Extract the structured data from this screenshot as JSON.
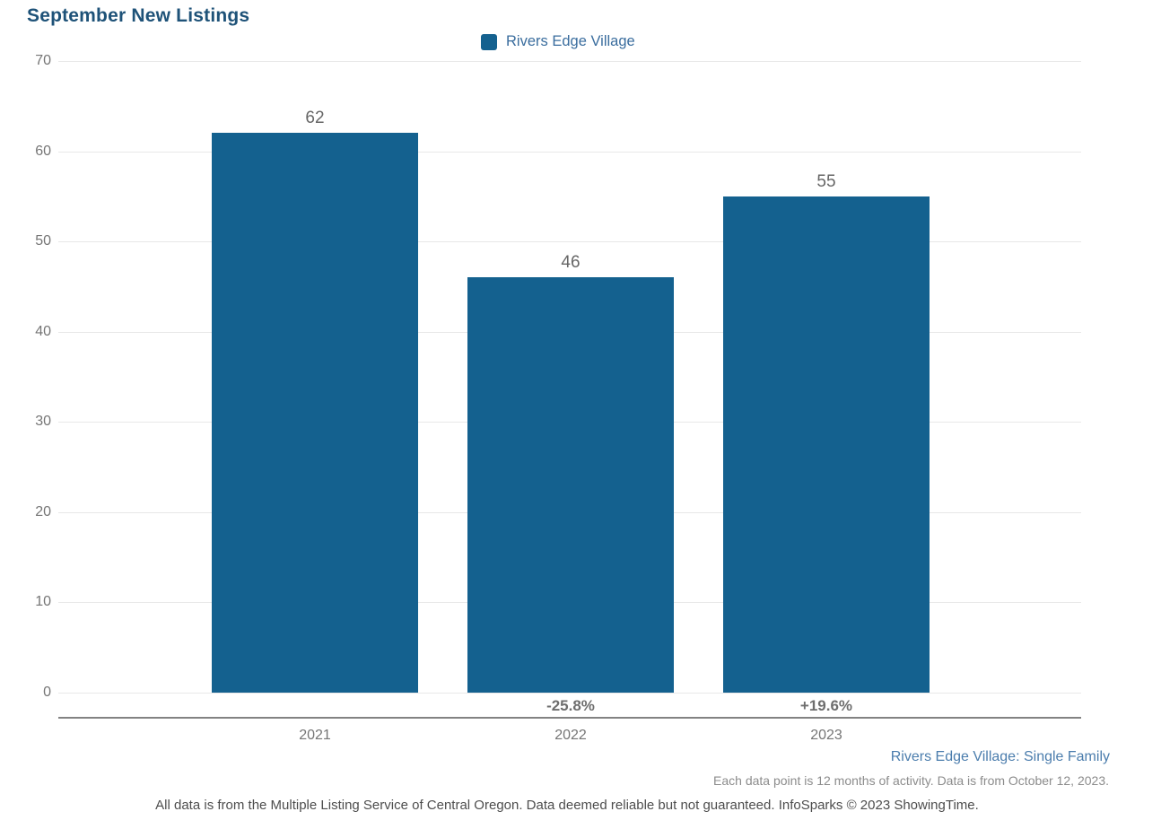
{
  "page": {
    "title": "September New Listings",
    "footer": {
      "segment_label": "Rivers Edge Village: Single Family",
      "data_note": "Each data point is 12 months of activity. Data is from October 12, 2023.",
      "disclaimer": "All data is from the Multiple Listing Service of Central Oregon. Data deemed reliable but not guaranteed. InfoSparks © 2023 ShowingTime."
    }
  },
  "colors": {
    "title_text": "#1E5278",
    "bar_fill": "#14618F",
    "legend_text": "#3A6D9E",
    "grid_line": "#e8e8e8",
    "axis_line": "#828282",
    "tick_text": "#757575",
    "value_text": "#666666",
    "pct_text": "#6E6E6E",
    "year_text": "#757575",
    "footer_blue": "#4B7DAD",
    "footer_gray": "#8C8C8C",
    "disclaimer_text": "#4D4D4D"
  },
  "chart_data": {
    "type": "bar",
    "title": "September New Listings",
    "legend": [
      {
        "label": "Rivers Edge Village",
        "color": "#14618F"
      }
    ],
    "legend_position": "top-center",
    "categories": [
      "2021",
      "2022",
      "2023"
    ],
    "values": [
      62,
      46,
      55
    ],
    "value_labels": [
      "62",
      "46",
      "55"
    ],
    "pct_change": [
      null,
      "-25.8%",
      "+19.6%"
    ],
    "xlabel": "",
    "ylabel": "",
    "ylim": [
      0,
      70
    ],
    "yticks": [
      0,
      10,
      20,
      30,
      40,
      50,
      60,
      70
    ],
    "grid": true
  }
}
